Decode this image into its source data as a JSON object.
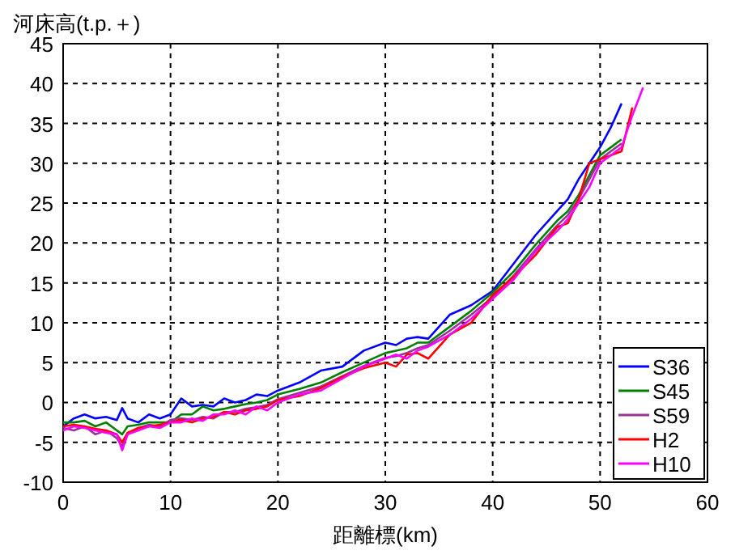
{
  "chart_data": {
    "type": "line",
    "xlabel": "距離標(km)",
    "ylabel": "河床高(t.p.＋)",
    "x": [
      0,
      1,
      2,
      3,
      4,
      5,
      5.5,
      6,
      7,
      8,
      9,
      10,
      11,
      12,
      13,
      14,
      15,
      16,
      17,
      18,
      19,
      20,
      22,
      24,
      26,
      28,
      30,
      31,
      32,
      33,
      34,
      36,
      38,
      40,
      42,
      44,
      46,
      47,
      48,
      49,
      50,
      51,
      52,
      53,
      54
    ],
    "xlim": [
      0,
      60
    ],
    "xticks": [
      0,
      10,
      20,
      30,
      40,
      50,
      60
    ],
    "ylim": [
      -10,
      45
    ],
    "yticks": [
      -10,
      -5,
      0,
      5,
      10,
      15,
      20,
      25,
      30,
      35,
      40,
      45
    ],
    "grid": true,
    "legend": "bottom right",
    "marker": "none",
    "series": [
      {
        "name": "S36",
        "color": "#0000ff",
        "values": [
          -3,
          -2,
          -1.5,
          -2,
          -1.8,
          -2.2,
          -0.7,
          -2,
          -2.5,
          -1.5,
          -2,
          -1.5,
          0.5,
          -0.5,
          -0.3,
          -0.5,
          0.5,
          0,
          0.3,
          1,
          0.8,
          1.5,
          2.5,
          4,
          4.5,
          6.5,
          7.5,
          7.2,
          8,
          8.2,
          8,
          11,
          12.2,
          14,
          17.5,
          21,
          24,
          25.5,
          28,
          30,
          32,
          34.5,
          37.5,
          null,
          null
        ]
      },
      {
        "name": "S45",
        "color": "#008000",
        "values": [
          -2.5,
          -2.5,
          -2.3,
          -3,
          -2.5,
          -3.5,
          -4,
          -3,
          -2.8,
          -2.5,
          -2.5,
          -2.5,
          -1.5,
          -1.5,
          -0.5,
          -1,
          -0.8,
          -0.5,
          -0.2,
          0,
          0.3,
          1,
          1.7,
          2.5,
          3.8,
          5,
          6.2,
          6.5,
          6.8,
          7.5,
          7.5,
          9.5,
          11.5,
          13.8,
          16.5,
          19.8,
          22.8,
          24,
          26,
          28.5,
          31,
          32,
          33,
          null,
          null
        ]
      },
      {
        "name": "S59",
        "color": "#993399",
        "values": [
          -3.2,
          -3.5,
          -3,
          -4,
          -3.5,
          -4.5,
          -5.5,
          -4,
          -3.2,
          -2.8,
          -3,
          -2.2,
          -2,
          -2.2,
          -1.8,
          -2,
          -1.2,
          -1.2,
          -0.8,
          -0.6,
          -0.3,
          0.4,
          1.2,
          2,
          3.3,
          4.6,
          5.6,
          5.8,
          6.2,
          6.8,
          7.2,
          9,
          11,
          13.2,
          16,
          19.2,
          22.2,
          23.5,
          25.5,
          28,
          30.5,
          31.5,
          32.5,
          null,
          null
        ]
      },
      {
        "name": "H2",
        "color": "#ff0000",
        "values": [
          -3,
          -2.8,
          -3,
          -3.3,
          -3.5,
          -4,
          -5,
          -3.8,
          -3.2,
          -3,
          -2.8,
          -2.5,
          -2.2,
          -2.5,
          -2,
          -1.8,
          -1.2,
          -1.5,
          -1,
          -0.8,
          -0.5,
          0.3,
          0.8,
          1.8,
          3.2,
          4.3,
          5,
          4.5,
          6,
          6.2,
          5.5,
          8.5,
          10,
          13.5,
          15.8,
          18.5,
          22,
          22.5,
          25.5,
          30,
          30.5,
          31,
          31.5,
          37,
          null
        ]
      },
      {
        "name": "H10",
        "color": "#ff00ff",
        "values": [
          -3.5,
          -3,
          -3.2,
          -3.5,
          -3.8,
          -4,
          -6,
          -4,
          -3.5,
          -3,
          -3.2,
          -2.5,
          -2.5,
          -2,
          -2.3,
          -1.5,
          -1.5,
          -1,
          -1.5,
          -0.5,
          -1,
          0,
          1,
          1.5,
          3,
          4.5,
          5.5,
          6,
          5.5,
          6.5,
          7,
          8.5,
          10.5,
          13,
          15.5,
          19,
          21.5,
          23,
          25,
          27,
          30,
          31,
          32,
          36,
          39.5
        ]
      }
    ]
  }
}
